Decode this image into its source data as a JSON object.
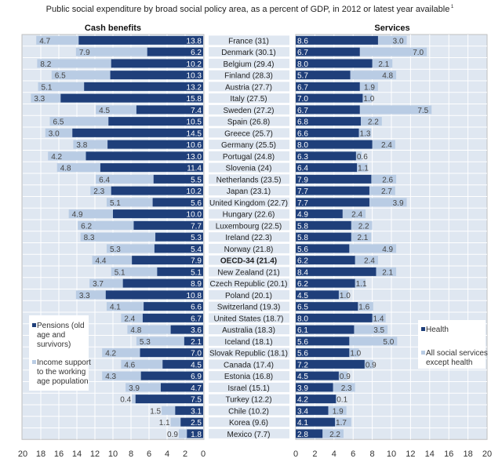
{
  "chart_data": [
    {
      "type": "bar",
      "orientation": "horizontal-stacked-reversed",
      "title": "Public social expenditure by broad social policy area, as a percent of GDP, in 2012 or latest year available",
      "title_footnote": "1",
      "panel_title": "Cash benefits",
      "xlim": [
        0,
        20
      ],
      "x_ticks": [
        20,
        18,
        16,
        14,
        12,
        10,
        8,
        6,
        4,
        2,
        0
      ],
      "grid": true,
      "legend_placement": "bottom-left",
      "categories": [
        "France (31)",
        "Denmark (30.1)",
        "Belgium (29.4)",
        "Finland (28.3)",
        "Austria (27.7)",
        "Italy (27.5)",
        "Sweden (27.2)",
        "Spain (26.8)",
        "Greece (25.7)",
        "Germany (25.5)",
        "Portugal (24.8)",
        "Slovenia (24)",
        "Netherlands (23.5)",
        "Japan (23.1)",
        "United Kingdom (22.7)",
        "Hungary (22.6)",
        "Luxembourg (22.5)",
        "Ireland (22.3)",
        "Norway (21.8)",
        "OECD-34 (21.4)",
        "New Zealand (21)",
        "Czech Republic (20.1)",
        "Poland (20.1)",
        "Switzerland (19.3)",
        "United States (18.7)",
        "Australia (18.3)",
        "Iceland (18.1)",
        "Slovak Republic (18.1)",
        "Canada (17.4)",
        "Estonia (16.8)",
        "Israel (15.1)",
        "Turkey (12.2)",
        "Chile (10.2)",
        "Korea (9.6)",
        "Mexico (7.7)"
      ],
      "highlight_category": "OECD-34 (21.4)",
      "series": [
        {
          "name": "Pensions (old age and survivors)",
          "color": "#1f3f7a",
          "values": [
            13.8,
            6.2,
            10.2,
            10.3,
            13.2,
            15.8,
            7.4,
            10.5,
            14.5,
            10.6,
            13.0,
            11.4,
            5.5,
            10.2,
            5.6,
            10.0,
            7.7,
            5.3,
            5.4,
            7.9,
            5.1,
            8.9,
            10.8,
            6.6,
            6.7,
            3.6,
            2.1,
            7.0,
            4.5,
            6.9,
            4.7,
            7.5,
            3.1,
            2.5,
            1.8
          ]
        },
        {
          "name": "Income support to the working age population",
          "color": "#b9cce4",
          "values": [
            4.7,
            7.9,
            8.2,
            6.5,
            5.1,
            3.3,
            4.5,
            6.5,
            3.0,
            3.8,
            4.2,
            4.8,
            6.4,
            2.3,
            5.1,
            4.9,
            6.2,
            8.3,
            5.3,
            4.4,
            5.1,
            3.7,
            3.3,
            4.1,
            2.4,
            4.8,
            5.3,
            4.2,
            4.6,
            4.3,
            3.9,
            0.4,
            1.5,
            1.1,
            0.9
          ]
        }
      ]
    },
    {
      "type": "bar",
      "orientation": "horizontal-stacked",
      "panel_title": "Services",
      "xlim": [
        0,
        20
      ],
      "x_ticks": [
        0,
        2,
        4,
        6,
        8,
        10,
        12,
        14,
        16,
        18,
        20
      ],
      "grid": true,
      "legend_placement": "right",
      "series": [
        {
          "name": "Health",
          "color": "#1f3f7a",
          "values": [
            8.6,
            6.7,
            8.0,
            5.7,
            6.7,
            7.0,
            6.7,
            6.8,
            6.6,
            8.0,
            6.3,
            6.4,
            7.9,
            7.7,
            7.7,
            4.9,
            5.8,
            5.8,
            5.6,
            6.2,
            8.4,
            6.2,
            4.5,
            6.5,
            8.0,
            6.1,
            5.6,
            5.6,
            7.2,
            4.5,
            3.9,
            4.2,
            3.4,
            4.1,
            2.8
          ]
        },
        {
          "name": "All social services except health",
          "color": "#b9cce4",
          "values": [
            3.0,
            7.0,
            2.1,
            4.8,
            1.9,
            1.0,
            7.5,
            2.2,
            1.3,
            2.4,
            0.6,
            1.1,
            2.6,
            2.7,
            3.9,
            2.4,
            2.2,
            2.1,
            4.9,
            2.4,
            2.1,
            1.1,
            1.0,
            1.6,
            1.4,
            3.5,
            5.0,
            1.0,
            0.9,
            0.9,
            2.3,
            0.1,
            1.9,
            1.7,
            2.2
          ]
        }
      ]
    }
  ]
}
